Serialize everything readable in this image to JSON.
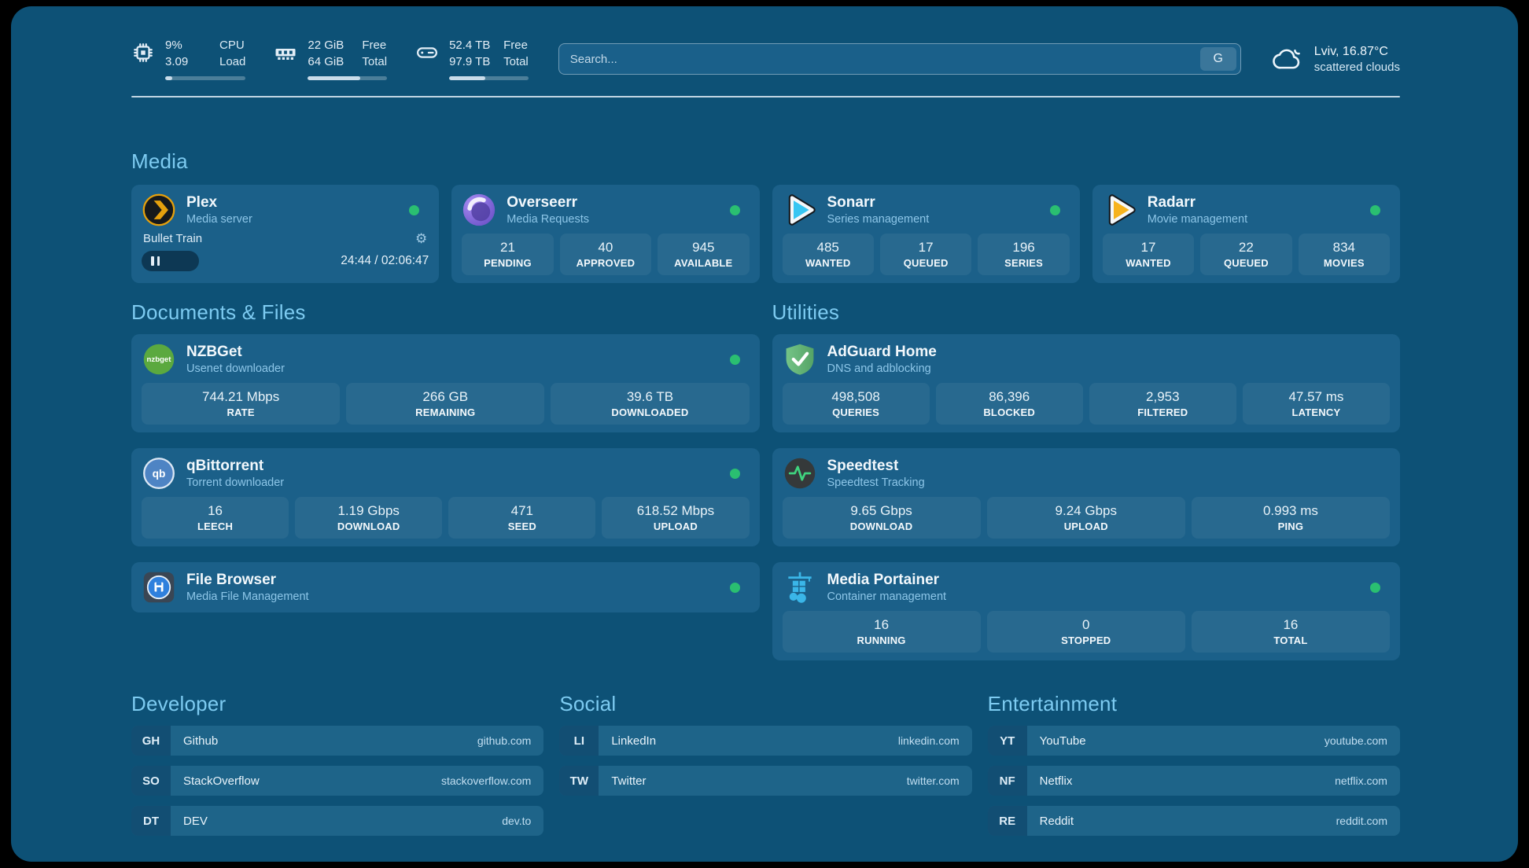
{
  "header": {
    "system_stats": [
      {
        "icon": "cpu-icon",
        "values": [
          "9%",
          "3.09"
        ],
        "labels": [
          "CPU",
          "Load"
        ],
        "progress_percent": 9
      },
      {
        "icon": "ram-icon",
        "values": [
          "22 GiB",
          "64 GiB"
        ],
        "labels": [
          "Free",
          "Total"
        ],
        "progress_percent": 66
      },
      {
        "icon": "disk-icon",
        "values": [
          "52.4 TB",
          "97.9 TB"
        ],
        "labels": [
          "Free",
          "Total"
        ],
        "progress_percent": 46
      }
    ],
    "search": {
      "placeholder": "Search...",
      "button_label": "G"
    },
    "weather": {
      "location_temp": "Lviv, 16.87°C",
      "condition": "scattered clouds"
    }
  },
  "media": {
    "title": "Media",
    "apps": [
      {
        "name": "Plex",
        "description": "Media server",
        "online": true,
        "player": {
          "title": "Bullet Train",
          "time": "24:44 / 02:06:47",
          "progress_percent": 20
        }
      },
      {
        "name": "Overseerr",
        "description": "Media Requests",
        "online": true,
        "stats": [
          {
            "value": "21",
            "label": "PENDING"
          },
          {
            "value": "40",
            "label": "APPROVED"
          },
          {
            "value": "945",
            "label": "AVAILABLE"
          }
        ]
      },
      {
        "name": "Sonarr",
        "description": "Series management",
        "online": true,
        "stats": [
          {
            "value": "485",
            "label": "WANTED"
          },
          {
            "value": "17",
            "label": "QUEUED"
          },
          {
            "value": "196",
            "label": "SERIES"
          }
        ]
      },
      {
        "name": "Radarr",
        "description": "Movie management",
        "online": true,
        "stats": [
          {
            "value": "17",
            "label": "WANTED"
          },
          {
            "value": "22",
            "label": "QUEUED"
          },
          {
            "value": "834",
            "label": "MOVIES"
          }
        ]
      }
    ]
  },
  "documents": {
    "title": "Documents & Files",
    "apps": [
      {
        "name": "NZBGet",
        "description": "Usenet downloader",
        "online": true,
        "stats": [
          {
            "value": "744.21 Mbps",
            "label": "RATE"
          },
          {
            "value": "266 GB",
            "label": "REMAINING"
          },
          {
            "value": "39.6 TB",
            "label": "DOWNLOADED"
          }
        ]
      },
      {
        "name": "qBittorrent",
        "description": "Torrent downloader",
        "online": true,
        "stats": [
          {
            "value": "16",
            "label": "LEECH"
          },
          {
            "value": "1.19 Gbps",
            "label": "DOWNLOAD"
          },
          {
            "value": "471",
            "label": "SEED"
          },
          {
            "value": "618.52 Mbps",
            "label": "UPLOAD"
          }
        ]
      },
      {
        "name": "File Browser",
        "description": "Media File Management",
        "online": true
      }
    ]
  },
  "utilities": {
    "title": "Utilities",
    "apps": [
      {
        "name": "AdGuard Home",
        "description": "DNS and adblocking",
        "online": false,
        "stats": [
          {
            "value": "498,508",
            "label": "QUERIES"
          },
          {
            "value": "86,396",
            "label": "BLOCKED"
          },
          {
            "value": "2,953",
            "label": "FILTERED"
          },
          {
            "value": "47.57 ms",
            "label": "LATENCY"
          }
        ]
      },
      {
        "name": "Speedtest",
        "description": "Speedtest Tracking",
        "online": false,
        "stats": [
          {
            "value": "9.65 Gbps",
            "label": "DOWNLOAD"
          },
          {
            "value": "9.24 Gbps",
            "label": "UPLOAD"
          },
          {
            "value": "0.993 ms",
            "label": "PING"
          }
        ]
      },
      {
        "name": "Media Portainer",
        "description": "Container management",
        "online": true,
        "stats": [
          {
            "value": "16",
            "label": "RUNNING"
          },
          {
            "value": "0",
            "label": "STOPPED"
          },
          {
            "value": "16",
            "label": "TOTAL"
          }
        ]
      }
    ]
  },
  "link_sections": [
    {
      "title": "Developer",
      "links": [
        {
          "abbr": "GH",
          "name": "Github",
          "domain": "github.com"
        },
        {
          "abbr": "SO",
          "name": "StackOverflow",
          "domain": "stackoverflow.com"
        },
        {
          "abbr": "DT",
          "name": "DEV",
          "domain": "dev.to"
        }
      ]
    },
    {
      "title": "Social",
      "links": [
        {
          "abbr": "LI",
          "name": "LinkedIn",
          "domain": "linkedin.com"
        },
        {
          "abbr": "TW",
          "name": "Twitter",
          "domain": "twitter.com"
        }
      ]
    },
    {
      "title": "Entertainment",
      "links": [
        {
          "abbr": "YT",
          "name": "YouTube",
          "domain": "youtube.com"
        },
        {
          "abbr": "NF",
          "name": "Netflix",
          "domain": "netflix.com"
        },
        {
          "abbr": "RE",
          "name": "Reddit",
          "domain": "reddit.com"
        }
      ]
    }
  ],
  "colors": {
    "page_bg": "#0d5176",
    "card_bg": "#1b6089",
    "status_online": "#2abf71",
    "section_title": "#7dcbf1",
    "plex_accent": "#e5a00d",
    "sonarr_accent": "#38c6f2",
    "radarr_accent": "#f6b31e",
    "adguard_accent": "#68b87b",
    "portainer_accent": "#3ab6e8"
  }
}
